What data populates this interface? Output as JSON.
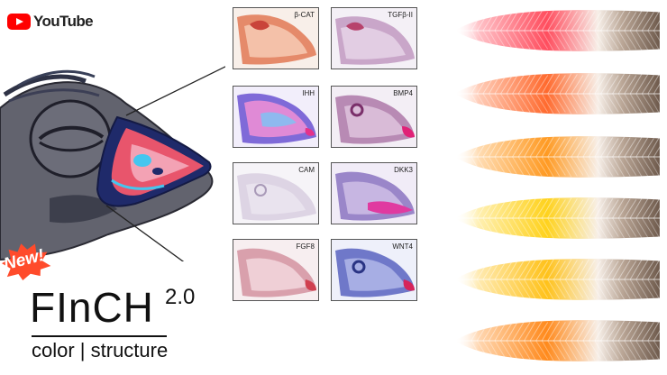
{
  "youtube": {
    "wordmark": "YouTube"
  },
  "panels": [
    {
      "label": "β-CAT"
    },
    {
      "label": "TGFβ-II"
    },
    {
      "label": "IHH"
    },
    {
      "label": "BMP4"
    },
    {
      "label": "CAM"
    },
    {
      "label": "DKK3"
    },
    {
      "label": "FGF8"
    },
    {
      "label": "WNT4"
    }
  ],
  "brand": {
    "badge": "New!",
    "name": "FInCH",
    "version": "2.0",
    "tagline": "color | structure"
  },
  "feathers": [
    {
      "color": "#ff4d5e"
    },
    {
      "color": "#ff6a2e"
    },
    {
      "color": "#ff9a22"
    },
    {
      "color": "#ffd21c"
    },
    {
      "color": "#ffc21a"
    },
    {
      "color": "#ff8a1c"
    }
  ]
}
